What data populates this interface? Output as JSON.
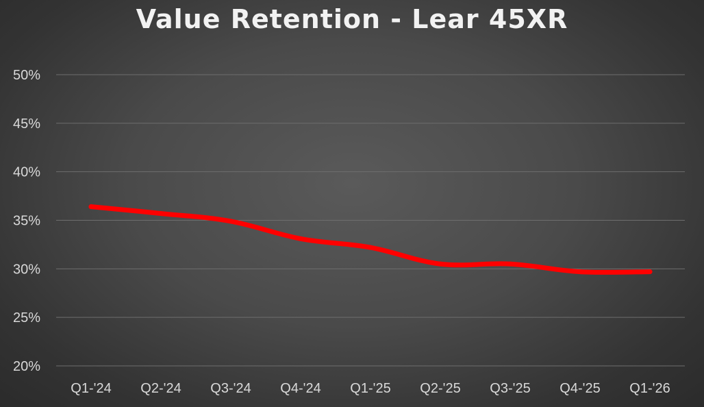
{
  "chart_data": {
    "type": "line",
    "title": "Value Retention - Lear 45XR",
    "xlabel": "",
    "ylabel": "",
    "categories": [
      "Q1-'24",
      "Q2-'24",
      "Q3-'24",
      "Q4-'24",
      "Q1-'25",
      "Q2-'25",
      "Q3-'25",
      "Q4-'25",
      "Q1-'26"
    ],
    "series": [
      {
        "name": "",
        "values": [
          0.364,
          0.357,
          0.349,
          0.331,
          0.322,
          0.305,
          0.305,
          0.297,
          0.297
        ],
        "color": "#ff0000"
      }
    ],
    "ylim": [
      0.2,
      0.5
    ],
    "y_ticks": [
      "50%",
      "45%",
      "40%",
      "35%",
      "30%",
      "25%",
      "20%"
    ],
    "grid": true,
    "legend": "none"
  },
  "colors": {
    "grid": "#6e6e6e",
    "tick_label": "#d9d9d9",
    "title": "#f2f2f2",
    "line": "#ff0000"
  }
}
